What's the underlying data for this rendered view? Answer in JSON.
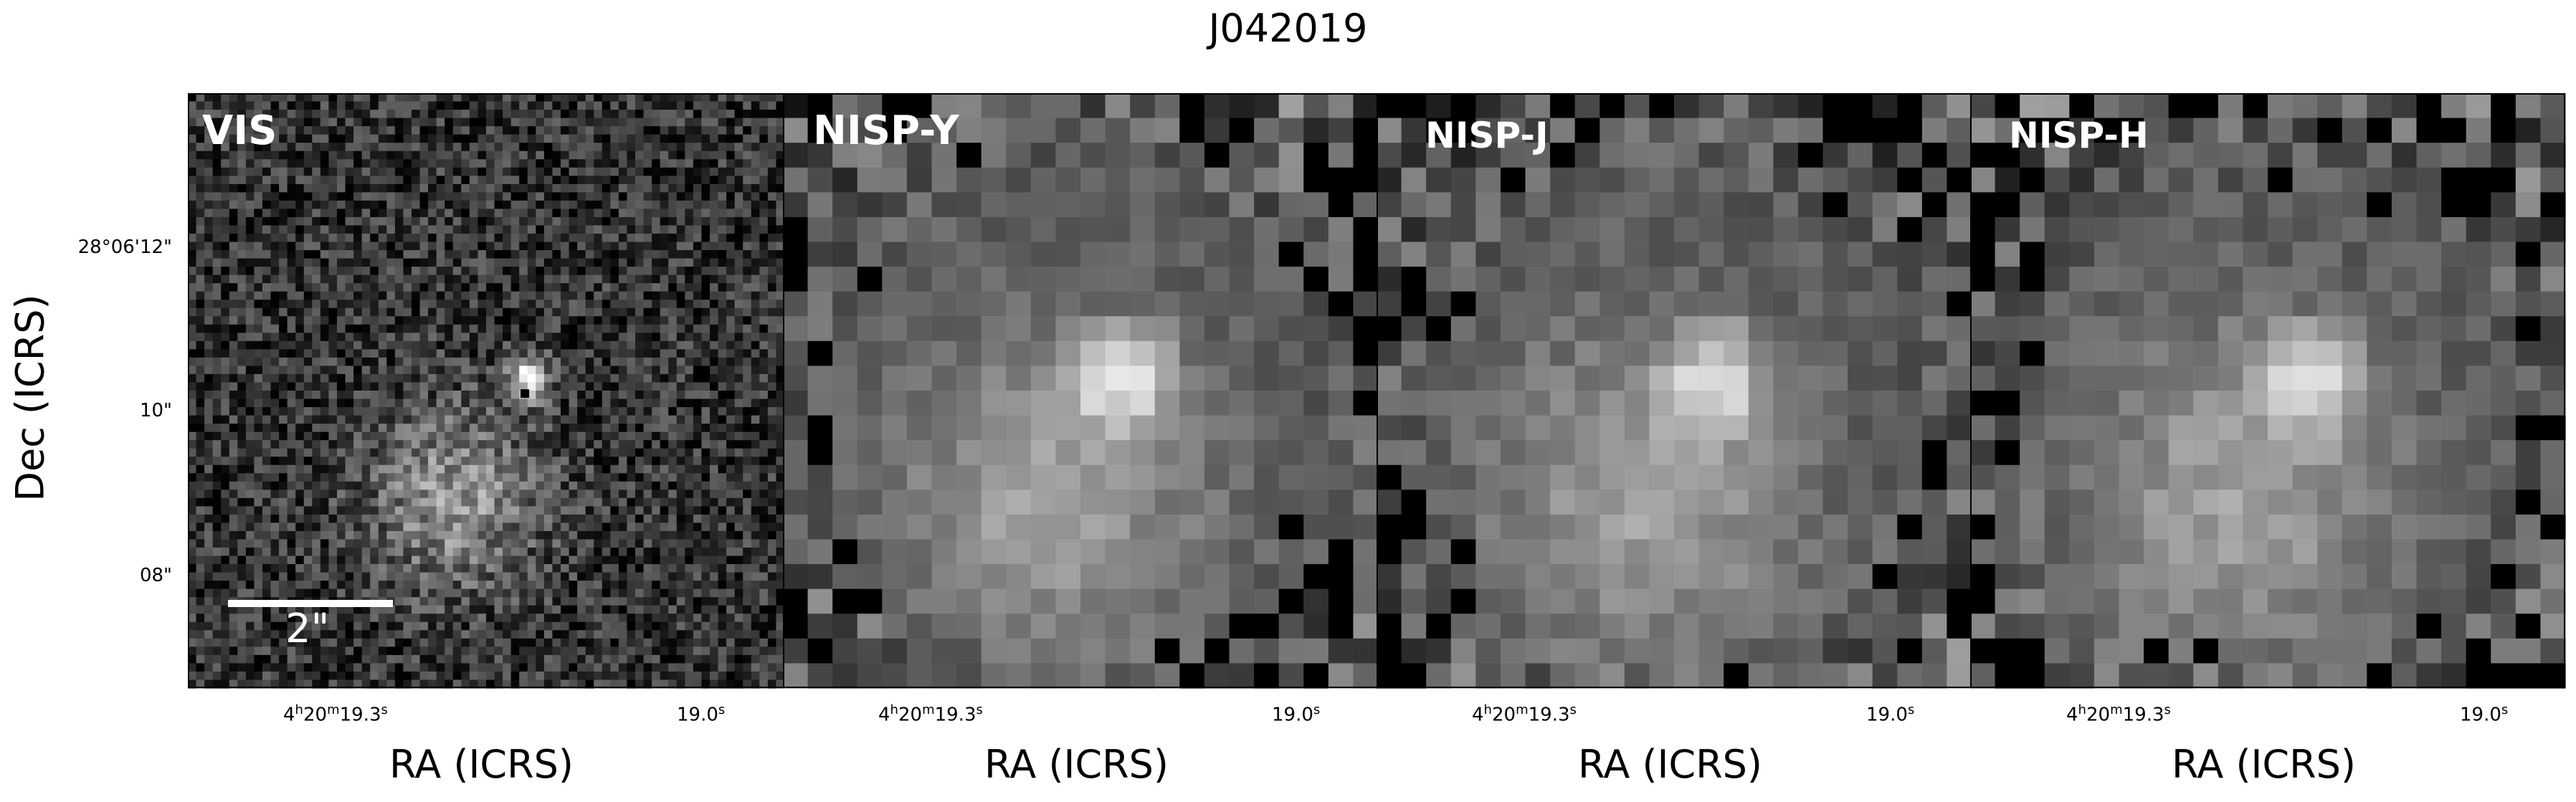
{
  "figure": {
    "title": "J042019",
    "ylabel": "Dec (ICRS)",
    "yticks": [
      "28°06'12\"",
      "10\"",
      "08\""
    ],
    "scale_bar_label": "2\"",
    "panels": [
      {
        "band": "VIS",
        "xlabel": "RA (ICRS)",
        "xticks": [
          "4h20m19.3s",
          "19.0s"
        ]
      },
      {
        "band": "NISP-Y",
        "xlabel": "RA (ICRS)",
        "xticks": [
          "4h20m19.3s",
          "19.0s"
        ]
      },
      {
        "band": "NISP-J",
        "xlabel": "RA (ICRS)",
        "xticks": [
          "4h20m19.3s",
          "19.0s"
        ]
      },
      {
        "band": "NISP-H",
        "xlabel": "RA (ICRS)",
        "xticks": [
          "4h20m19.3s",
          "19.0s"
        ]
      }
    ]
  },
  "colors": {
    "background": "#ffffff",
    "panel_fill": "#000000",
    "text_on_image": "#ffffff"
  }
}
